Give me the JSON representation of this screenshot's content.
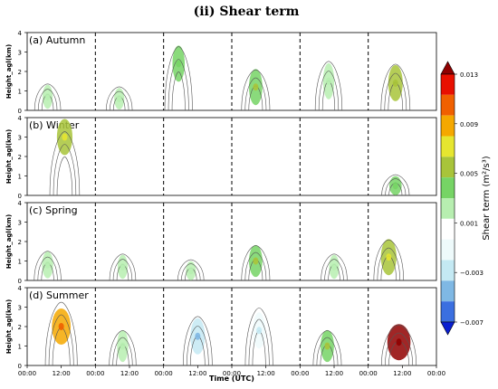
{
  "figure_title": "(ii) Shear term",
  "chart_data": {
    "type": "heatmap",
    "description_type": "contour panels (4 seasons x 6 columns) with shear-term color shading",
    "panels": [
      {
        "label": "(a) Autumn"
      },
      {
        "label": "(b) Winter"
      },
      {
        "label": "(c) Spring"
      },
      {
        "label": "(d) Summer"
      }
    ],
    "columns": 6,
    "ylabel": "Height_agl(km)",
    "ylim": [
      0,
      4
    ],
    "yticks": [
      "0",
      "1",
      "2",
      "3",
      "4"
    ],
    "xlabel": "Time (UTC)",
    "xticks": [
      "00:00",
      "12:00",
      "00:00",
      "12:00",
      "00:00",
      "12:00",
      "00:00",
      "12:00",
      "00:00",
      "12:00",
      "00:00",
      "12:00",
      "00:00"
    ],
    "colorbar": {
      "label": "Shear term (m²/s³)",
      "tick_labels": [
        "0.013",
        "0.009",
        "0.005",
        "0.001",
        "−0.003",
        "−0.007"
      ],
      "tick_values": [
        0.013,
        0.009,
        0.005,
        0.001,
        -0.003,
        -0.007
      ],
      "levels": [
        -0.007,
        -0.005,
        -0.003,
        -0.001,
        0.001,
        0.003,
        0.005,
        0.007,
        0.009,
        0.011,
        0.013
      ],
      "colors": [
        "#0a1fd0",
        "#3b6fe0",
        "#7fb8e4",
        "#c4e9f3",
        "#eefafb",
        "#ffffff",
        "#b7eeb0",
        "#76d465",
        "#a8c43a",
        "#e6e630",
        "#f5a800",
        "#f06000",
        "#e81000",
        "#900000"
      ],
      "extend": "both"
    },
    "features": [
      {
        "panel": 0,
        "col": 0,
        "x": 0.3,
        "y": 0.7,
        "intensity": 0.001
      },
      {
        "panel": 0,
        "col": 1,
        "x": 0.35,
        "y": 0.6,
        "intensity": 0.001
      },
      {
        "panel": 0,
        "col": 2,
        "x": 0.22,
        "y": 2.4,
        "intensity": 0.003
      },
      {
        "panel": 0,
        "col": 3,
        "x": 0.35,
        "y": 1.2,
        "intensity": 0.004
      },
      {
        "panel": 0,
        "col": 4,
        "x": 0.42,
        "y": 1.5,
        "intensity": 0.002
      },
      {
        "panel": 0,
        "col": 5,
        "x": 0.4,
        "y": 1.4,
        "intensity": 0.005
      },
      {
        "panel": 1,
        "col": 0,
        "x": 0.55,
        "y": 3.0,
        "intensity": 0.006
      },
      {
        "panel": 1,
        "col": 5,
        "x": 0.4,
        "y": 0.5,
        "intensity": 0.003
      },
      {
        "panel": 2,
        "col": 0,
        "x": 0.3,
        "y": 0.8,
        "intensity": 0.002
      },
      {
        "panel": 2,
        "col": 1,
        "x": 0.4,
        "y": 0.7,
        "intensity": 0.001
      },
      {
        "panel": 2,
        "col": 2,
        "x": 0.4,
        "y": 0.5,
        "intensity": 0.001
      },
      {
        "panel": 2,
        "col": 3,
        "x": 0.35,
        "y": 1.0,
        "intensity": 0.004
      },
      {
        "panel": 2,
        "col": 4,
        "x": 0.5,
        "y": 0.7,
        "intensity": 0.001
      },
      {
        "panel": 2,
        "col": 5,
        "x": 0.3,
        "y": 1.2,
        "intensity": 0.006
      },
      {
        "panel": 3,
        "col": 0,
        "x": 0.5,
        "y": 2.0,
        "intensity": 0.009
      },
      {
        "panel": 3,
        "col": 1,
        "x": 0.4,
        "y": 1.0,
        "intensity": 0.002
      },
      {
        "panel": 3,
        "col": 2,
        "x": 0.5,
        "y": 1.5,
        "intensity": -0.005
      },
      {
        "panel": 3,
        "col": 3,
        "x": 0.4,
        "y": 1.8,
        "intensity": -0.003
      },
      {
        "panel": 3,
        "col": 4,
        "x": 0.4,
        "y": 1.0,
        "intensity": 0.004
      },
      {
        "panel": 3,
        "col": 5,
        "x": 0.45,
        "y": 1.2,
        "intensity": 0.013
      }
    ]
  }
}
